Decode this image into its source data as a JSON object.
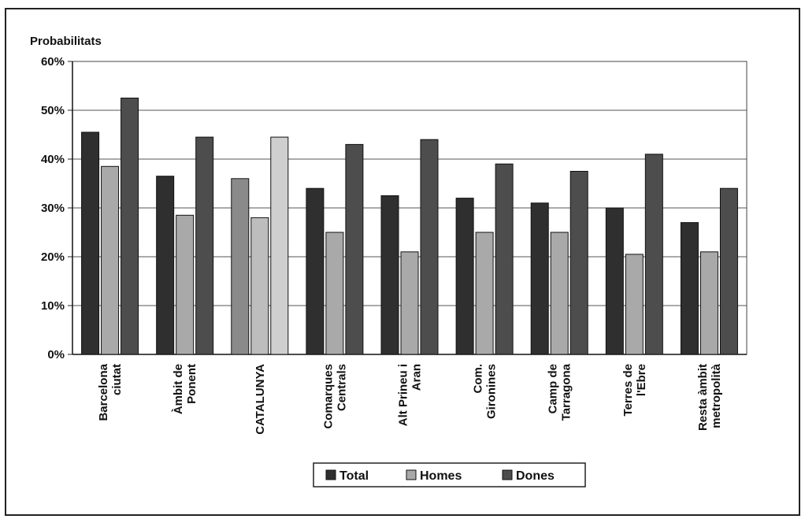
{
  "chart_data": {
    "type": "bar",
    "ylabel": "Probabilitats",
    "ylim": [
      0,
      60
    ],
    "yticks": [
      "0%",
      "10%",
      "20%",
      "30%",
      "40%",
      "50%",
      "60%"
    ],
    "categories": [
      [
        "Barcelona",
        "ciutat"
      ],
      [
        "Àmbit de",
        "Ponent"
      ],
      [
        "CATALUNYA"
      ],
      [
        "Comarques",
        "Centrals"
      ],
      [
        "Alt Prineu i",
        "Aran"
      ],
      [
        "Com.",
        "Gironines"
      ],
      [
        "Camp de",
        "Tarragona"
      ],
      [
        "Terres de",
        "l'Ebre"
      ],
      [
        "Resta àmbit",
        "metropolità"
      ]
    ],
    "series": [
      {
        "name": "Total",
        "color": "#2f2f2f",
        "values": [
          45.5,
          36.5,
          36,
          34,
          32.5,
          32,
          31,
          30,
          27
        ]
      },
      {
        "name": "Homes",
        "color": "#a9a9a9",
        "values": [
          38.5,
          28.5,
          28,
          25,
          21,
          25,
          25,
          20.5,
          21
        ]
      },
      {
        "name": "Dones",
        "color": "#4d4d4d",
        "values": [
          52.5,
          44.5,
          44.5,
          43,
          44,
          39,
          37.5,
          41,
          34
        ]
      }
    ],
    "highlight": {
      "category_index": 2,
      "colors": [
        "#8a8a8a",
        "#bdbdbd",
        "#cfcfcf"
      ]
    },
    "grid": true,
    "legend_position": "bottom"
  }
}
